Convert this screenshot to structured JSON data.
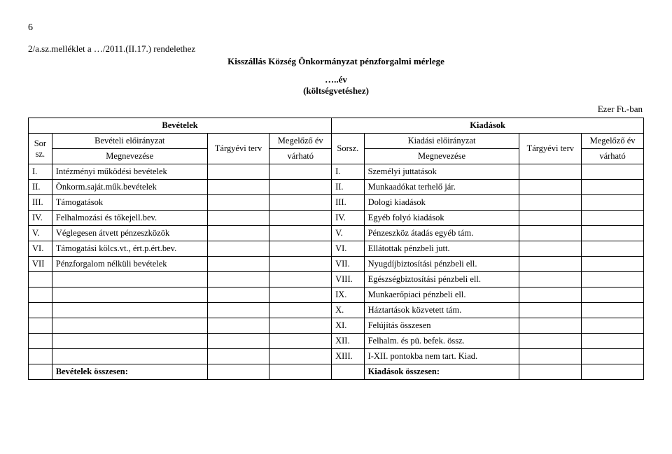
{
  "page_number": "6",
  "ref": "2/a.sz.melléklet a …/2011.(II.17.) rendelethez",
  "title": "Kisszállás Község Önkormányzat pénzforgalmi mérlege",
  "year_line": "…..év",
  "subhead": "(költségvetéshez)",
  "unit": "Ezer Ft.-ban",
  "table": {
    "left_header": "Bevételek",
    "right_header": "Kiadások",
    "sor_label": "Sor sz.",
    "bev_label_1": "Bevételi előirányzat",
    "bev_label_2": "Megnevezése",
    "targy_label": "Tárgyévi terv",
    "meg_label_1": "Megelőző év",
    "meg_label_2": "várható",
    "sorsz_label": "Sorsz.",
    "kiad_label_1": "Kiadási előirányzat",
    "kiad_label_2": "Megnevezése",
    "rows": [
      {
        "ln": "I.",
        "lname": "Intézményi működési bevételek",
        "rn": "I.",
        "rname": "Személyi juttatások"
      },
      {
        "ln": "II.",
        "lname": "Önkorm.saját.műk.bevételek",
        "rn": "II.",
        "rname": "Munkaadókat terhelő jár."
      },
      {
        "ln": "III.",
        "lname": "Támogatások",
        "rn": "III.",
        "rname": "Dologi kiadások"
      },
      {
        "ln": "IV.",
        "lname": "Felhalmozási és tőkejell.bev.",
        "rn": "IV.",
        "rname": "Egyéb folyó kiadások"
      },
      {
        "ln": "V.",
        "lname": "Véglegesen átvett pénzeszközök",
        "rn": "V.",
        "rname": "Pénzeszköz átadás egyéb tám."
      },
      {
        "ln": "VI.",
        "lname": "Támogatási kölcs.vt., ért.p.ért.bev.",
        "rn": "VI.",
        "rname": "Ellátottak pénzbeli jutt."
      },
      {
        "ln": "VII",
        "lname": "Pénzforgalom nélküli bevételek",
        "rn": "VII.",
        "rname": "Nyugdíjbiztosítási pénzbeli ell."
      },
      {
        "ln": "",
        "lname": "",
        "rn": "VIII.",
        "rname": "Egészségbiztosítási pénzbeli ell."
      },
      {
        "ln": "",
        "lname": "",
        "rn": "IX.",
        "rname": "Munkaerőpiaci pénzbeli ell."
      },
      {
        "ln": "",
        "lname": "",
        "rn": "X.",
        "rname": "Háztartások közvetett tám."
      },
      {
        "ln": "",
        "lname": "",
        "rn": "XI.",
        "rname": "Felújítás összesen"
      },
      {
        "ln": "",
        "lname": "",
        "rn": "XII.",
        "rname": "Felhalm. és pü. befek. össz."
      },
      {
        "ln": "",
        "lname": "",
        "rn": "XIII.",
        "rname": " I-XII. pontokba nem tart. Kiad."
      }
    ],
    "left_total": "Bevételek összesen:",
    "right_total": "Kiadások összesen:"
  },
  "colors": {
    "text": "#000000",
    "background": "#ffffff",
    "border": "#000000"
  }
}
